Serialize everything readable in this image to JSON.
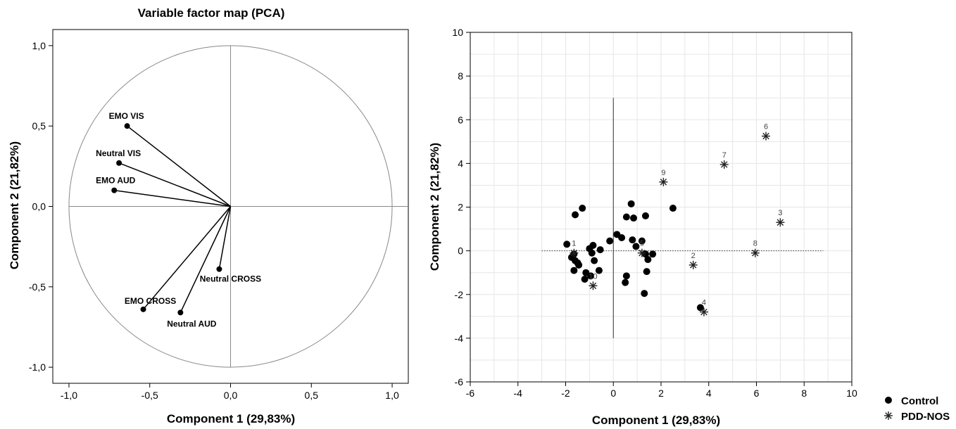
{
  "chart_data": [
    {
      "type": "scatter",
      "title": "Variable factor map (PCA)",
      "xlabel": "Component 1 (29,83%)",
      "ylabel": "Component 2 (21,82%)",
      "xlim": [
        -1.1,
        1.1
      ],
      "ylim": [
        -1.1,
        1.1
      ],
      "xticks": [
        "-1,0",
        "-0,5",
        "0,0",
        "0,5",
        "1,0"
      ],
      "yticks": [
        "-1,0",
        "-0,5",
        "0,0",
        "0,5",
        "1,0"
      ],
      "grid": false,
      "unit_circle": true,
      "vectors": [
        {
          "label": "EMO VIS",
          "x": -0.64,
          "y": 0.5
        },
        {
          "label": "Neutral VIS",
          "x": -0.69,
          "y": 0.27
        },
        {
          "label": "EMO AUD",
          "x": -0.72,
          "y": 0.1
        },
        {
          "label": "Neutral CROSS",
          "x": -0.07,
          "y": -0.39
        },
        {
          "label": "EMO CROSS",
          "x": -0.54,
          "y": -0.64
        },
        {
          "label": "Neutral AUD",
          "x": -0.31,
          "y": -0.66
        }
      ]
    },
    {
      "type": "scatter",
      "title": "",
      "xlabel": "Component 1 (29,83%)",
      "ylabel": "Component 2 (21,82%)",
      "xlim": [
        -6,
        10
      ],
      "ylim": [
        -6,
        10
      ],
      "xticks": [
        "-6",
        "-4",
        "-2",
        "0",
        "2",
        "4",
        "6",
        "8",
        "10"
      ],
      "yticks": [
        "-6",
        "-4",
        "-2",
        "0",
        "2",
        "4",
        "6",
        "8",
        "10"
      ],
      "grid": true,
      "legend_position": "outside-bottom-right",
      "series": [
        {
          "name": "Control",
          "marker": "filled-circle",
          "points": [
            [
              -1.95,
              0.3
            ],
            [
              -1.6,
              1.65
            ],
            [
              -1.3,
              1.95
            ],
            [
              -1.75,
              -0.3
            ],
            [
              -1.65,
              -0.15
            ],
            [
              -1.6,
              -0.45
            ],
            [
              -1.5,
              -0.55
            ],
            [
              -1.45,
              -0.65
            ],
            [
              -1.65,
              -0.9
            ],
            [
              -1.15,
              -1.0
            ],
            [
              -1.2,
              -1.3
            ],
            [
              -0.95,
              -1.15
            ],
            [
              -1.0,
              0.1
            ],
            [
              -0.85,
              0.25
            ],
            [
              -0.9,
              -0.1
            ],
            [
              -0.8,
              -0.45
            ],
            [
              -0.6,
              -0.9
            ],
            [
              -0.55,
              0.05
            ],
            [
              -0.15,
              0.45
            ],
            [
              0.15,
              0.75
            ],
            [
              0.35,
              0.6
            ],
            [
              0.55,
              1.55
            ],
            [
              0.75,
              2.15
            ],
            [
              0.85,
              1.5
            ],
            [
              1.35,
              1.6
            ],
            [
              0.8,
              0.5
            ],
            [
              0.95,
              0.2
            ],
            [
              1.2,
              0.45
            ],
            [
              1.35,
              -0.15
            ],
            [
              1.45,
              -0.4
            ],
            [
              1.65,
              -0.15
            ],
            [
              1.4,
              -0.95
            ],
            [
              1.3,
              -1.95
            ],
            [
              0.55,
              -1.15
            ],
            [
              0.5,
              -1.45
            ],
            [
              2.5,
              1.95
            ],
            [
              3.65,
              -2.6
            ]
          ]
        },
        {
          "name": "PDD-NOS",
          "marker": "asterisk",
          "points": [
            {
              "label": "1",
              "x": -1.65,
              "y": -0.1
            },
            {
              "label": "2",
              "x": 3.35,
              "y": -0.65
            },
            {
              "label": "3",
              "x": 7.0,
              "y": 1.3
            },
            {
              "label": "4",
              "x": 3.8,
              "y": -2.8
            },
            {
              "label": "5",
              "x": 1.2,
              "y": -0.1
            },
            {
              "label": "6",
              "x": 6.4,
              "y": 5.25
            },
            {
              "label": "7",
              "x": 4.65,
              "y": 3.95
            },
            {
              "label": "8",
              "x": 5.95,
              "y": -0.1
            },
            {
              "label": "9",
              "x": 2.1,
              "y": 3.15
            },
            {
              "label": "10",
              "x": -0.85,
              "y": -1.6
            }
          ]
        }
      ]
    }
  ]
}
